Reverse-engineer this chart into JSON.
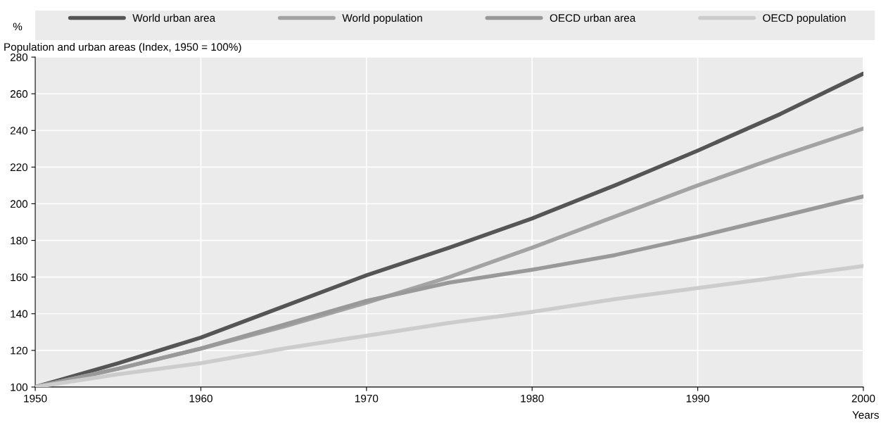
{
  "chart_data": {
    "type": "line",
    "subtitle": "Population and urban areas (Index, 1950 = 100%)",
    "ylabel": "%",
    "xlabel": "Years",
    "x": [
      1950,
      1955,
      1960,
      1965,
      1970,
      1975,
      1980,
      1985,
      1990,
      1995,
      2000
    ],
    "series": [
      {
        "name": "World urban area",
        "color": "#555555",
        "values": [
          100,
          113,
          127,
          144,
          161,
          176,
          192,
          210,
          229,
          249,
          271
        ]
      },
      {
        "name": "World population",
        "color": "#a3a3a3",
        "values": [
          100,
          110,
          121,
          133,
          146,
          160,
          176,
          193,
          210,
          226,
          241
        ]
      },
      {
        "name": "OECD urban area",
        "color": "#999999",
        "values": [
          100,
          110,
          121,
          134,
          147,
          157,
          164,
          172,
          182,
          193,
          204
        ]
      },
      {
        "name": "OECD population",
        "color": "#cccccc",
        "values": [
          100,
          107,
          113,
          121,
          128,
          135,
          141,
          148,
          154,
          160,
          166
        ]
      }
    ],
    "xlim": [
      1950,
      2000
    ],
    "xticks": [
      1950,
      1960,
      1970,
      1980,
      1990,
      2000
    ],
    "ylim": [
      100,
      280
    ],
    "yticks": [
      100,
      120,
      140,
      160,
      180,
      200,
      220,
      240,
      260,
      280
    ],
    "grid": true,
    "legend": "top",
    "marker": "none",
    "line_style": "solid"
  }
}
